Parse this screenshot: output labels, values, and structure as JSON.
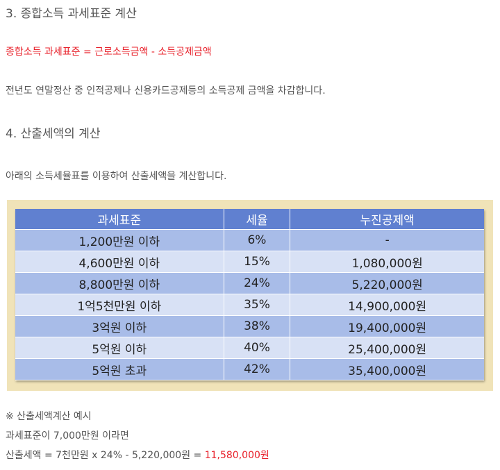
{
  "section3": {
    "heading": "3. 종합소득 과세표준 계산",
    "formula": "종합소득 과세표준 = 근로소득금액 - 소득공제금액",
    "description": "전년도 연말정산 중 인적공제나 신용카드공제등의 소득공제 금액을 차감합니다."
  },
  "section4": {
    "heading": "4. 산출세액의 계산",
    "description": "아래의 소득세율표를 이용하여 산출세액을 계산합니다."
  },
  "tax_table": {
    "headers": [
      "과세표준",
      "세율",
      "누진공제액"
    ],
    "rows": [
      [
        "1,200만원 이하",
        "6%",
        "-"
      ],
      [
        "4,600만원 이하",
        "15%",
        "1,080,000원"
      ],
      [
        "8,800만원 이하",
        "24%",
        "5,220,000원"
      ],
      [
        "1억5천만원 이하",
        "35%",
        "14,900,000원"
      ],
      [
        "3억원 이하",
        "38%",
        "19,400,000원"
      ],
      [
        "5억원 이하",
        "40%",
        "25,400,000원"
      ],
      [
        "5억원 초과",
        "42%",
        "35,400,000원"
      ]
    ]
  },
  "example": {
    "title": "※ 산출세액계산 예시",
    "line1": "과세표준이 7,000만원 이라면",
    "line2_prefix": "산출세액 = 7천만원 x 24% - 5,220,000원 = ",
    "line2_result": "11,580,000원"
  },
  "colors": {
    "accent_red": "#e8202a",
    "table_header": "#6080d0",
    "row_dark": "#a8bce8",
    "row_light": "#d8e1f5",
    "frame": "#f0e3b8"
  }
}
